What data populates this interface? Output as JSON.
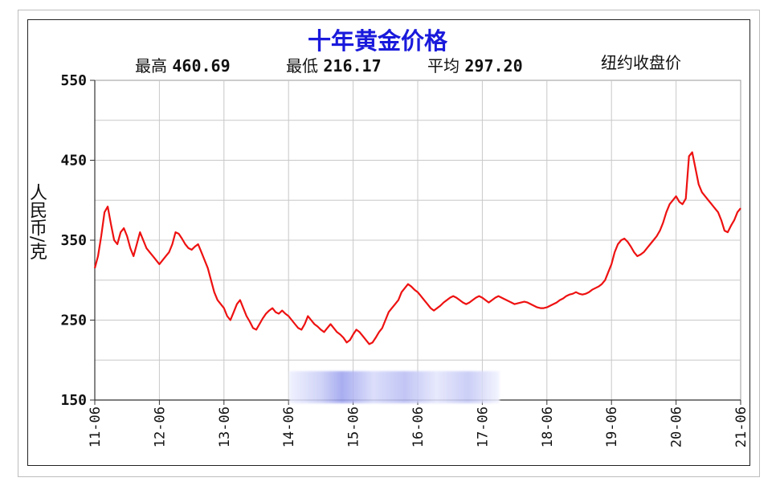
{
  "chart_data": {
    "type": "line",
    "title": "十年黄金价格",
    "subtitle": "纽约收盘价",
    "ylabel": "人民币/克",
    "stats": {
      "high_label": "最高",
      "high_value": "460.69",
      "low_label": "最低",
      "low_value": "216.17",
      "avg_label": "平均",
      "avg_value": "297.20"
    },
    "ylim": [
      150,
      550
    ],
    "yticks": [
      "550",
      "450",
      "350",
      "250",
      "150"
    ],
    "xticks": [
      "11-06",
      "12-06",
      "13-06",
      "14-06",
      "15-06",
      "16-06",
      "17-06",
      "18-06",
      "19-06",
      "20-06",
      "21-06"
    ],
    "grid": true,
    "color": "#ee1111",
    "series": [
      {
        "x": [
          0,
          0.05,
          0.1,
          0.15,
          0.2,
          0.25,
          0.3,
          0.35,
          0.4,
          0.45,
          0.5,
          0.55,
          0.6,
          0.65,
          0.7,
          0.75,
          0.8,
          0.85,
          0.9,
          0.95,
          1.0,
          1.05,
          1.1,
          1.15,
          1.2,
          1.25,
          1.3,
          1.35,
          1.4,
          1.45,
          1.5,
          1.55,
          1.6,
          1.65,
          1.7,
          1.75,
          1.8,
          1.85,
          1.9,
          1.95,
          2.0,
          2.05,
          2.1,
          2.15,
          2.2,
          2.25,
          2.3,
          2.35,
          2.4,
          2.45,
          2.5,
          2.55,
          2.6,
          2.65,
          2.7,
          2.75,
          2.8,
          2.85,
          2.9,
          2.95,
          3.0,
          3.05,
          3.1,
          3.15,
          3.2,
          3.25,
          3.3,
          3.35,
          3.4,
          3.45,
          3.5,
          3.55,
          3.6,
          3.65,
          3.7,
          3.75,
          3.8,
          3.85,
          3.9,
          3.95,
          4.0,
          4.05,
          4.1,
          4.15,
          4.2,
          4.25,
          4.3,
          4.35,
          4.4,
          4.45,
          4.5,
          4.55,
          4.6,
          4.65,
          4.7,
          4.75,
          4.8,
          4.85,
          4.9,
          4.95,
          5.0,
          5.05,
          5.1,
          5.15,
          5.2,
          5.25,
          5.3,
          5.35,
          5.4,
          5.45,
          5.5,
          5.55,
          5.6,
          5.65,
          5.7,
          5.75,
          5.8,
          5.85,
          5.9,
          5.95,
          6.0,
          6.05,
          6.1,
          6.15,
          6.2,
          6.25,
          6.3,
          6.35,
          6.4,
          6.45,
          6.5,
          6.55,
          6.6,
          6.65,
          6.7,
          6.75,
          6.8,
          6.85,
          6.9,
          6.95,
          7.0,
          7.05,
          7.1,
          7.15,
          7.2,
          7.25,
          7.3,
          7.35,
          7.4,
          7.45,
          7.5,
          7.55,
          7.6,
          7.65,
          7.7,
          7.75,
          7.8,
          7.85,
          7.9,
          7.95,
          8.0,
          8.05,
          8.1,
          8.15,
          8.2,
          8.25,
          8.3,
          8.35,
          8.4,
          8.45,
          8.5,
          8.55,
          8.6,
          8.65,
          8.7,
          8.75,
          8.8,
          8.85,
          8.9,
          8.95,
          9.0,
          9.05,
          9.1,
          9.15,
          9.2,
          9.25,
          9.3,
          9.35,
          9.4,
          9.45,
          9.5,
          9.55,
          9.6,
          9.65,
          9.7,
          9.75,
          9.8,
          9.85,
          9.9,
          9.95,
          10.0
        ],
        "values": [
          315,
          330,
          355,
          385,
          392,
          370,
          350,
          345,
          360,
          365,
          355,
          340,
          330,
          345,
          360,
          350,
          340,
          335,
          330,
          325,
          320,
          325,
          330,
          335,
          345,
          360,
          358,
          352,
          345,
          340,
          338,
          342,
          345,
          335,
          325,
          315,
          300,
          285,
          275,
          270,
          265,
          255,
          250,
          260,
          270,
          275,
          265,
          255,
          248,
          240,
          238,
          245,
          252,
          258,
          262,
          265,
          260,
          258,
          262,
          258,
          255,
          250,
          245,
          240,
          238,
          245,
          255,
          250,
          245,
          242,
          238,
          235,
          240,
          245,
          240,
          235,
          232,
          228,
          222,
          225,
          232,
          238,
          235,
          230,
          225,
          220,
          222,
          228,
          235,
          240,
          250,
          260,
          265,
          270,
          275,
          285,
          290,
          295,
          292,
          288,
          285,
          280,
          275,
          270,
          265,
          262,
          265,
          268,
          272,
          275,
          278,
          280,
          278,
          275,
          272,
          270,
          272,
          275,
          278,
          280,
          278,
          275,
          272,
          275,
          278,
          280,
          278,
          276,
          274,
          272,
          270,
          271,
          272,
          273,
          272,
          270,
          268,
          266,
          265,
          265,
          266,
          268,
          270,
          272,
          275,
          277,
          280,
          282,
          283,
          285,
          283,
          282,
          283,
          285,
          288,
          290,
          292,
          295,
          300,
          310,
          320,
          335,
          345,
          350,
          352,
          348,
          342,
          335,
          330,
          332,
          335,
          340,
          345,
          350,
          355,
          362,
          372,
          385,
          395,
          400,
          405,
          398,
          395,
          402,
          455,
          460,
          440,
          420,
          410,
          405,
          400,
          395,
          390,
          385,
          375,
          362,
          360,
          368,
          375,
          385,
          390
        ]
      }
    ]
  },
  "watermark": "blurred"
}
